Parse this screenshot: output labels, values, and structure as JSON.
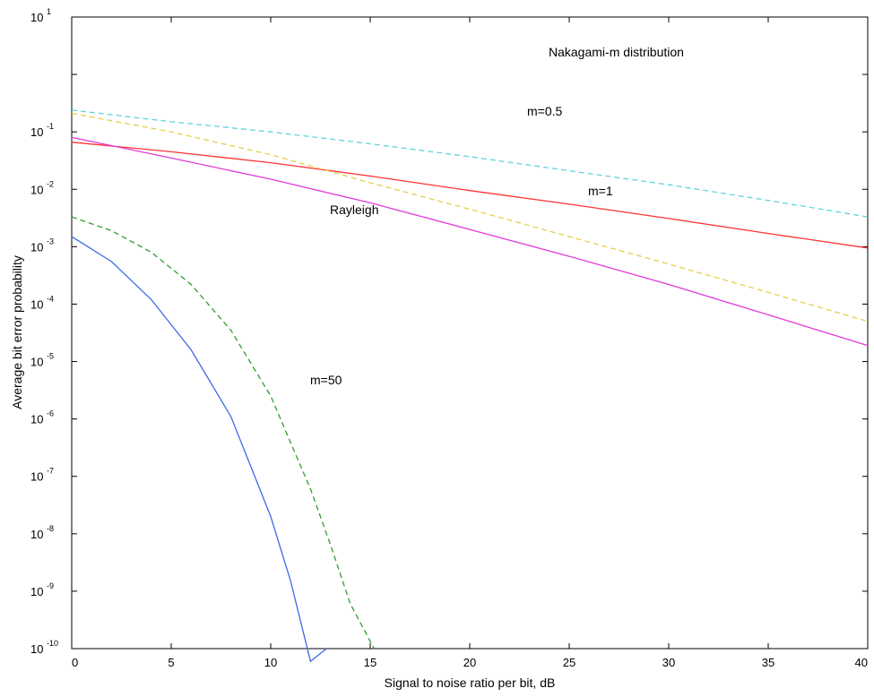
{
  "chart_data": {
    "type": "line",
    "title": "",
    "xlabel": "Signal to noise ratio per bit, dB",
    "ylabel": "Average bit error probability",
    "xlim": [
      0,
      40
    ],
    "ylim": [
      1e-10,
      10
    ],
    "yscale": "log",
    "grid": false,
    "x_ticks": [
      0,
      5,
      10,
      15,
      20,
      25,
      30,
      35,
      40
    ],
    "y_tick_exponents": [
      1,
      -1,
      -2,
      -3,
      -4,
      -5,
      -6,
      -7,
      -8,
      -9,
      -10
    ],
    "y_tick_base": "10",
    "annotations": [
      "Nakagami-m distribution",
      "m=0.5",
      "m=1",
      "Rayleigh",
      "m=50"
    ],
    "series": [
      {
        "color": "#5fd4de",
        "dash": "dashed",
        "x": [
          0,
          5,
          10,
          15,
          20,
          25,
          30,
          35,
          40
        ],
        "y": [
          0.24,
          0.15,
          0.1,
          0.062,
          0.037,
          0.021,
          0.012,
          0.0064,
          0.0033
        ]
      },
      {
        "color": "#ff3333",
        "dash": "solid",
        "x": [
          0,
          5,
          10,
          15,
          20,
          25,
          30,
          35,
          40
        ],
        "y": [
          0.066,
          0.045,
          0.029,
          0.017,
          0.0095,
          0.0055,
          0.0031,
          0.0017,
          0.00095
        ]
      },
      {
        "color": "#e3cf4a",
        "dash": "dashed",
        "x": [
          0,
          5,
          10,
          15,
          20,
          25,
          30,
          35,
          40
        ],
        "y": [
          0.21,
          0.1,
          0.04,
          0.013,
          0.0045,
          0.0015,
          0.0005,
          0.00016,
          5e-05
        ]
      },
      {
        "color": "#e03ad8",
        "dash": "solid",
        "x": [
          0,
          5,
          10,
          15,
          20,
          25,
          30,
          35,
          40
        ],
        "y": [
          0.08,
          0.035,
          0.015,
          0.0058,
          0.002,
          0.00068,
          0.00022,
          6.5e-05,
          1.9e-05
        ]
      },
      {
        "color": "#3d6ae8",
        "dash": "solid",
        "x": [
          0,
          2,
          4,
          6,
          8,
          10,
          11,
          12,
          12.8
        ],
        "y": [
          0.0015,
          0.00055,
          0.00012,
          1.6e-05,
          1.1e-06,
          2e-08,
          1.5e-09,
          6e-11,
          1e-10
        ]
      },
      {
        "color": "#2e9e2e",
        "dash": "dashed",
        "x": [
          0,
          2,
          4,
          6,
          8,
          10,
          12,
          13,
          14,
          15.2
        ],
        "y": [
          0.0033,
          0.0019,
          0.0008,
          0.00022,
          3.5e-05,
          2.5e-06,
          6e-08,
          6.5e-09,
          6e-10,
          1e-10
        ]
      }
    ]
  }
}
